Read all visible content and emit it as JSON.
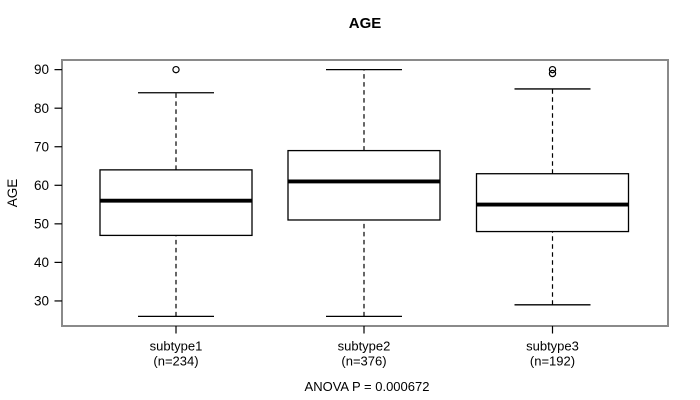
{
  "chart_data": {
    "type": "box",
    "title": "AGE",
    "ylabel": "AGE",
    "xlabel": "",
    "ylim": [
      23.5,
      92.5
    ],
    "yticks": [
      30,
      40,
      50,
      60,
      70,
      80,
      90
    ],
    "grid": false,
    "legend": null,
    "annotation": "ANOVA P = 0.000672",
    "groups": [
      {
        "label": "subtype1",
        "n": 234,
        "n_label": "(n=234)",
        "whisker_low": 26,
        "q1": 47,
        "median": 56,
        "q3": 64,
        "whisker_high": 84,
        "outliers": [
          90
        ]
      },
      {
        "label": "subtype2",
        "n": 376,
        "n_label": "(n=376)",
        "whisker_low": 26,
        "q1": 51,
        "median": 61,
        "q3": 69,
        "whisker_high": 90,
        "outliers": []
      },
      {
        "label": "subtype3",
        "n": 192,
        "n_label": "(n=192)",
        "whisker_low": 29,
        "q1": 48,
        "median": 55,
        "q3": 63,
        "whisker_high": 85,
        "outliers": [
          89,
          90
        ]
      }
    ],
    "colors": {
      "frame": "#8a8a8a",
      "box_stroke": "#000000",
      "median": "#000000",
      "whisker": "#000000",
      "text": "#000000",
      "background": "#ffffff"
    }
  }
}
